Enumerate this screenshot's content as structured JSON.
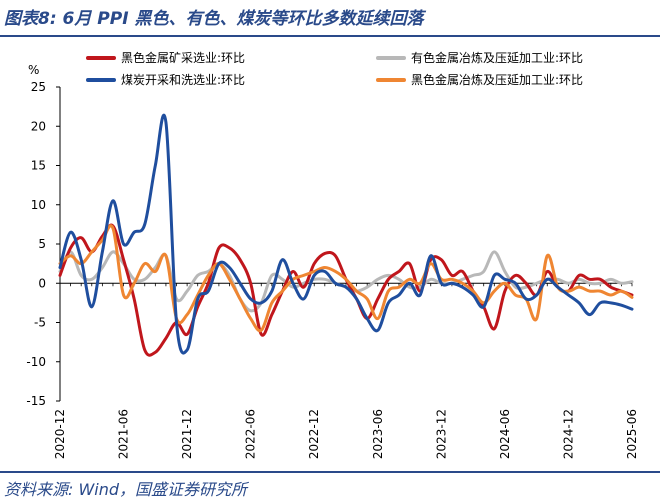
{
  "figure": {
    "title": "图表8:  6月 PPI 黑色、有色、煤炭等环比多数延续回落",
    "source": "资料来源:  Wind，国盛证券研究所"
  },
  "chart_data": {
    "type": "line",
    "title": "",
    "xlabel": "",
    "ylabel": "%",
    "ylim": [
      -15,
      25
    ],
    "yticks": [
      -15,
      -10,
      -5,
      0,
      5,
      10,
      15,
      20,
      25
    ],
    "xticks": [
      "2020-12",
      "2021-06",
      "2021-12",
      "2022-06",
      "2022-12",
      "2023-06",
      "2023-12",
      "2024-06",
      "2024-12",
      "2025-06"
    ],
    "grid": false,
    "legend_position": "top",
    "x": [
      "2020-12",
      "2021-01",
      "2021-02",
      "2021-03",
      "2021-04",
      "2021-05",
      "2021-06",
      "2021-07",
      "2021-08",
      "2021-09",
      "2021-10",
      "2021-11",
      "2021-12",
      "2022-01",
      "2022-02",
      "2022-03",
      "2022-04",
      "2022-05",
      "2022-06",
      "2022-07",
      "2022-08",
      "2022-09",
      "2022-10",
      "2022-11",
      "2022-12",
      "2023-01",
      "2023-02",
      "2023-03",
      "2023-04",
      "2023-05",
      "2023-06",
      "2023-07",
      "2023-08",
      "2023-09",
      "2023-10",
      "2023-11",
      "2023-12",
      "2024-01",
      "2024-02",
      "2024-03",
      "2024-04",
      "2024-05",
      "2024-06",
      "2024-07",
      "2024-08",
      "2024-09",
      "2024-10",
      "2024-11",
      "2024-12",
      "2025-01",
      "2025-02",
      "2025-03",
      "2025-04",
      "2025-05",
      "2025-06"
    ],
    "series": [
      {
        "name": "黑色金属矿采选业:环比",
        "color": "#c0161c",
        "values": [
          1.0,
          4.5,
          5.8,
          4.0,
          6.0,
          7.3,
          3.0,
          -2.0,
          -8.5,
          -8.8,
          -7.0,
          -5.0,
          -6.5,
          -3.0,
          0.0,
          4.5,
          4.5,
          3.0,
          0.0,
          -6.5,
          -4.0,
          -1.0,
          1.5,
          -0.5,
          2.5,
          3.8,
          3.5,
          0.5,
          -2.0,
          -4.5,
          -2.0,
          0.5,
          1.5,
          2.5,
          -1.0,
          3.0,
          3.0,
          1.0,
          1.5,
          -1.0,
          -3.0,
          -5.8,
          -1.0,
          1.0,
          0.0,
          -1.5,
          1.5,
          -0.5,
          -1.0,
          1.0,
          0.5,
          0.5,
          -0.5,
          -1.0,
          -1.5
        ]
      },
      {
        "name": "有色金属冶炼及压延加工业:环比",
        "color": "#b8b8b8",
        "values": [
          1.5,
          4.0,
          1.0,
          0.5,
          2.0,
          4.0,
          2.5,
          0.5,
          0.5,
          2.0,
          3.5,
          -2.0,
          -1.0,
          1.0,
          1.5,
          2.5,
          1.0,
          -2.0,
          -3.5,
          -2.5,
          1.0,
          0.5,
          -0.5,
          0.0,
          0.5,
          0.5,
          0.0,
          -0.5,
          -1.0,
          -0.5,
          0.5,
          1.0,
          0.5,
          -0.5,
          -0.5,
          0.5,
          0.0,
          0.0,
          0.5,
          1.0,
          1.5,
          4.0,
          1.5,
          -0.5,
          -0.5,
          0.0,
          0.5,
          0.5,
          0.0,
          0.5,
          0.0,
          0.0,
          0.5,
          0.0,
          0.2
        ]
      },
      {
        "name": "煤炭开采和洗选业:环比",
        "color": "#1f4e9e",
        "values": [
          2.0,
          6.5,
          3.0,
          -3.0,
          4.0,
          10.5,
          5.0,
          6.5,
          7.5,
          15.0,
          20.5,
          -5.0,
          -8.5,
          -2.0,
          -1.0,
          2.5,
          2.0,
          0.0,
          -2.0,
          -2.5,
          -1.0,
          3.0,
          0.0,
          -2.0,
          1.0,
          1.5,
          0.0,
          -0.5,
          -2.0,
          -4.5,
          -6.0,
          -2.5,
          -1.5,
          0.0,
          -1.5,
          3.5,
          0.0,
          0.0,
          -0.5,
          -1.5,
          -3.0,
          1.0,
          0.5,
          0.0,
          -2.0,
          -1.5,
          0.5,
          -0.5,
          -1.5,
          -2.5,
          -4.0,
          -2.5,
          -2.5,
          -2.8,
          -3.3
        ]
      },
      {
        "name": "黑色金属冶炼及压延加工业:环比",
        "color": "#ef8632",
        "values": [
          2.5,
          3.5,
          2.5,
          4.0,
          5.5,
          7.0,
          -1.5,
          0.0,
          2.5,
          1.5,
          3.5,
          -4.5,
          -4.0,
          -1.5,
          1.0,
          2.5,
          0.5,
          -2.0,
          -4.5,
          -6.0,
          -2.5,
          -1.0,
          0.5,
          1.0,
          1.5,
          2.0,
          1.5,
          0.5,
          -1.0,
          -2.0,
          -4.5,
          -1.0,
          -0.5,
          0.5,
          0.0,
          2.5,
          0.5,
          0.5,
          0.0,
          -1.0,
          -2.5,
          -1.0,
          0.0,
          -1.5,
          -2.0,
          -4.5,
          3.5,
          -0.5,
          -1.0,
          -0.5,
          -1.0,
          -1.0,
          -1.5,
          -1.0,
          -1.8
        ]
      }
    ]
  }
}
